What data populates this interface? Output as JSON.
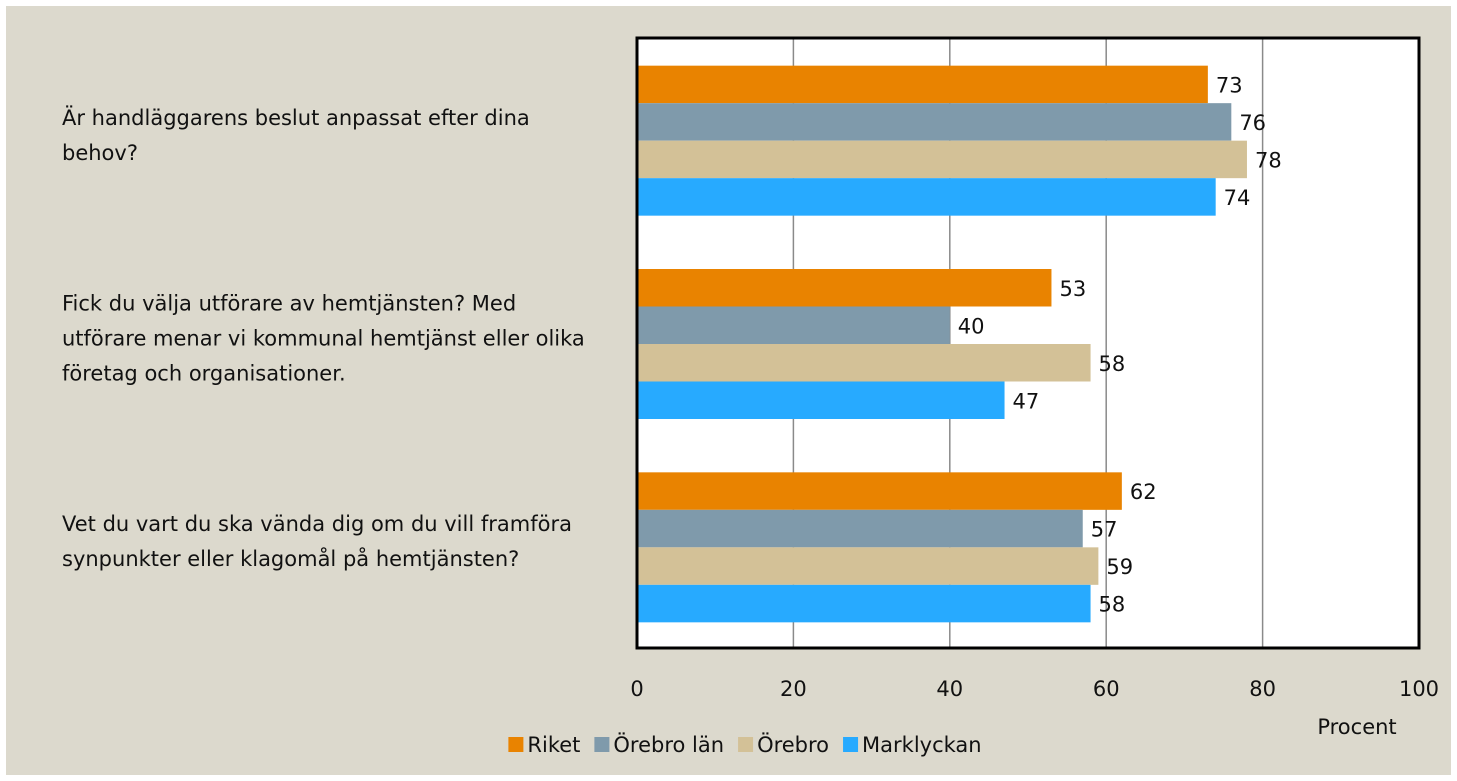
{
  "chart_data": {
    "type": "bar",
    "orientation": "horizontal",
    "categories": [
      "Är handläggarens beslut anpassat efter dina behov?",
      "Fick du välja utförare av hemtjänsten? Med utförare menar vi kommunal hemtjänst eller olika företag och organisationer.",
      "Vet du vart du ska vända dig om du vill framföra synpunkter eller klagomål på hemtjänsten?"
    ],
    "series": [
      {
        "name": "Riket",
        "color": "#e98300",
        "values": [
          73,
          53,
          62
        ]
      },
      {
        "name": "Örebro län",
        "color": "#7f9aab",
        "values": [
          76,
          40,
          57
        ]
      },
      {
        "name": "Örebro",
        "color": "#d3c197",
        "values": [
          78,
          58,
          59
        ]
      },
      {
        "name": "Marklyckan",
        "color": "#27aaff",
        "values": [
          74,
          47,
          58
        ]
      }
    ],
    "x_label": "Procent",
    "xlim": [
      0,
      100
    ],
    "xticks": [
      0,
      20,
      40,
      60,
      80,
      100
    ],
    "grid": true
  }
}
